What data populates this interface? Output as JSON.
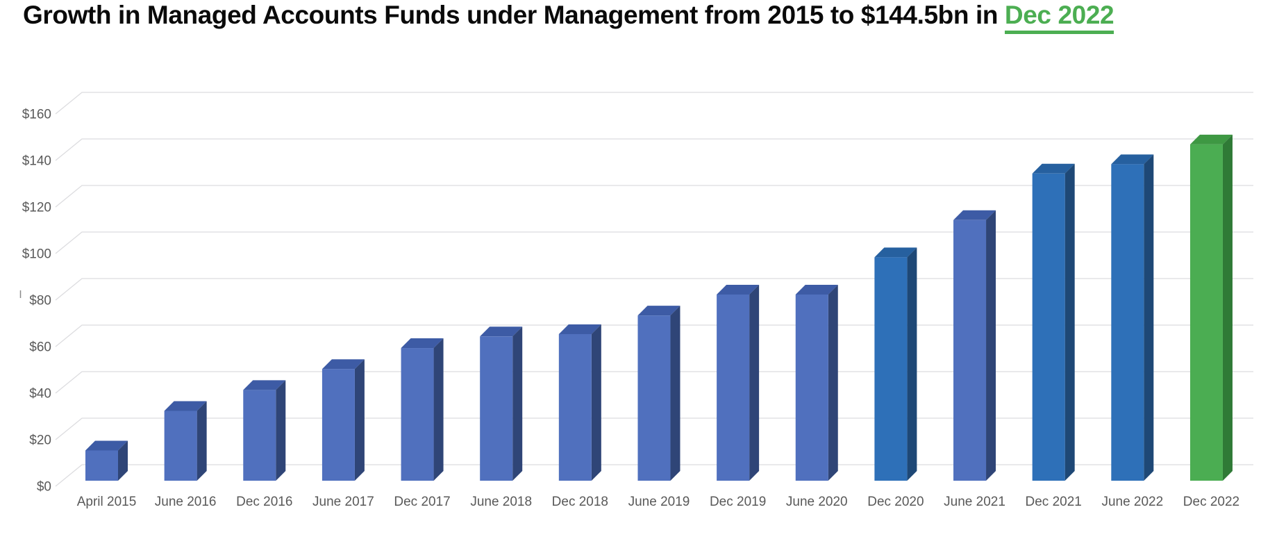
{
  "title": {
    "prefix": "Growth in Managed Accounts Funds under Management from 2015 to $144.5bn in ",
    "highlight": "Dec 2022",
    "highlight_color": "#4CAE52"
  },
  "chart_data": {
    "type": "bar",
    "style": "3d-column",
    "title": "Growth in Managed Accounts Funds under Management from 2015 to $144.5bn in Dec 2022",
    "categories": [
      "April 2015",
      "June 2016",
      "Dec 2016",
      "June 2017",
      "Dec 2017",
      "June 2018",
      "Dec 2018",
      "June 2019",
      "Dec 2019",
      "June 2020",
      "Dec 2020",
      "June 2021",
      "Dec 2021",
      "June 2022",
      "Dec 2022"
    ],
    "values": [
      13,
      30,
      39,
      48,
      57,
      62,
      63,
      71,
      80,
      80,
      96,
      112,
      132,
      136,
      144.5
    ],
    "unit": "$bn",
    "bar_colors": [
      "slate",
      "slate",
      "slate",
      "slate",
      "slate",
      "slate",
      "slate",
      "slate",
      "slate",
      "slate",
      "bright",
      "slate",
      "bright",
      "bright",
      "green"
    ],
    "palette": {
      "slate": {
        "front": "#5070BE",
        "top": "#3D5BA5",
        "side": "#2F4577"
      },
      "bright": {
        "front": "#2E70B8",
        "top": "#26609F",
        "side": "#1E4876"
      },
      "green": {
        "front": "#4BAD52",
        "top": "#3E9843",
        "side": "#2F7A36"
      }
    },
    "ytick_values": [
      0,
      20,
      40,
      60,
      80,
      100,
      120,
      140,
      160
    ],
    "ytick_labels": [
      "$0",
      "$20",
      "$40",
      "$60",
      "$80",
      "$100",
      "$120",
      "$140",
      "$160"
    ],
    "ylim": [
      0,
      160
    ],
    "xlabel": "",
    "ylabel": "",
    "grid": true,
    "legend": "none",
    "gridline_color": "#DCDCDF",
    "axis_text_color": "#595959"
  }
}
